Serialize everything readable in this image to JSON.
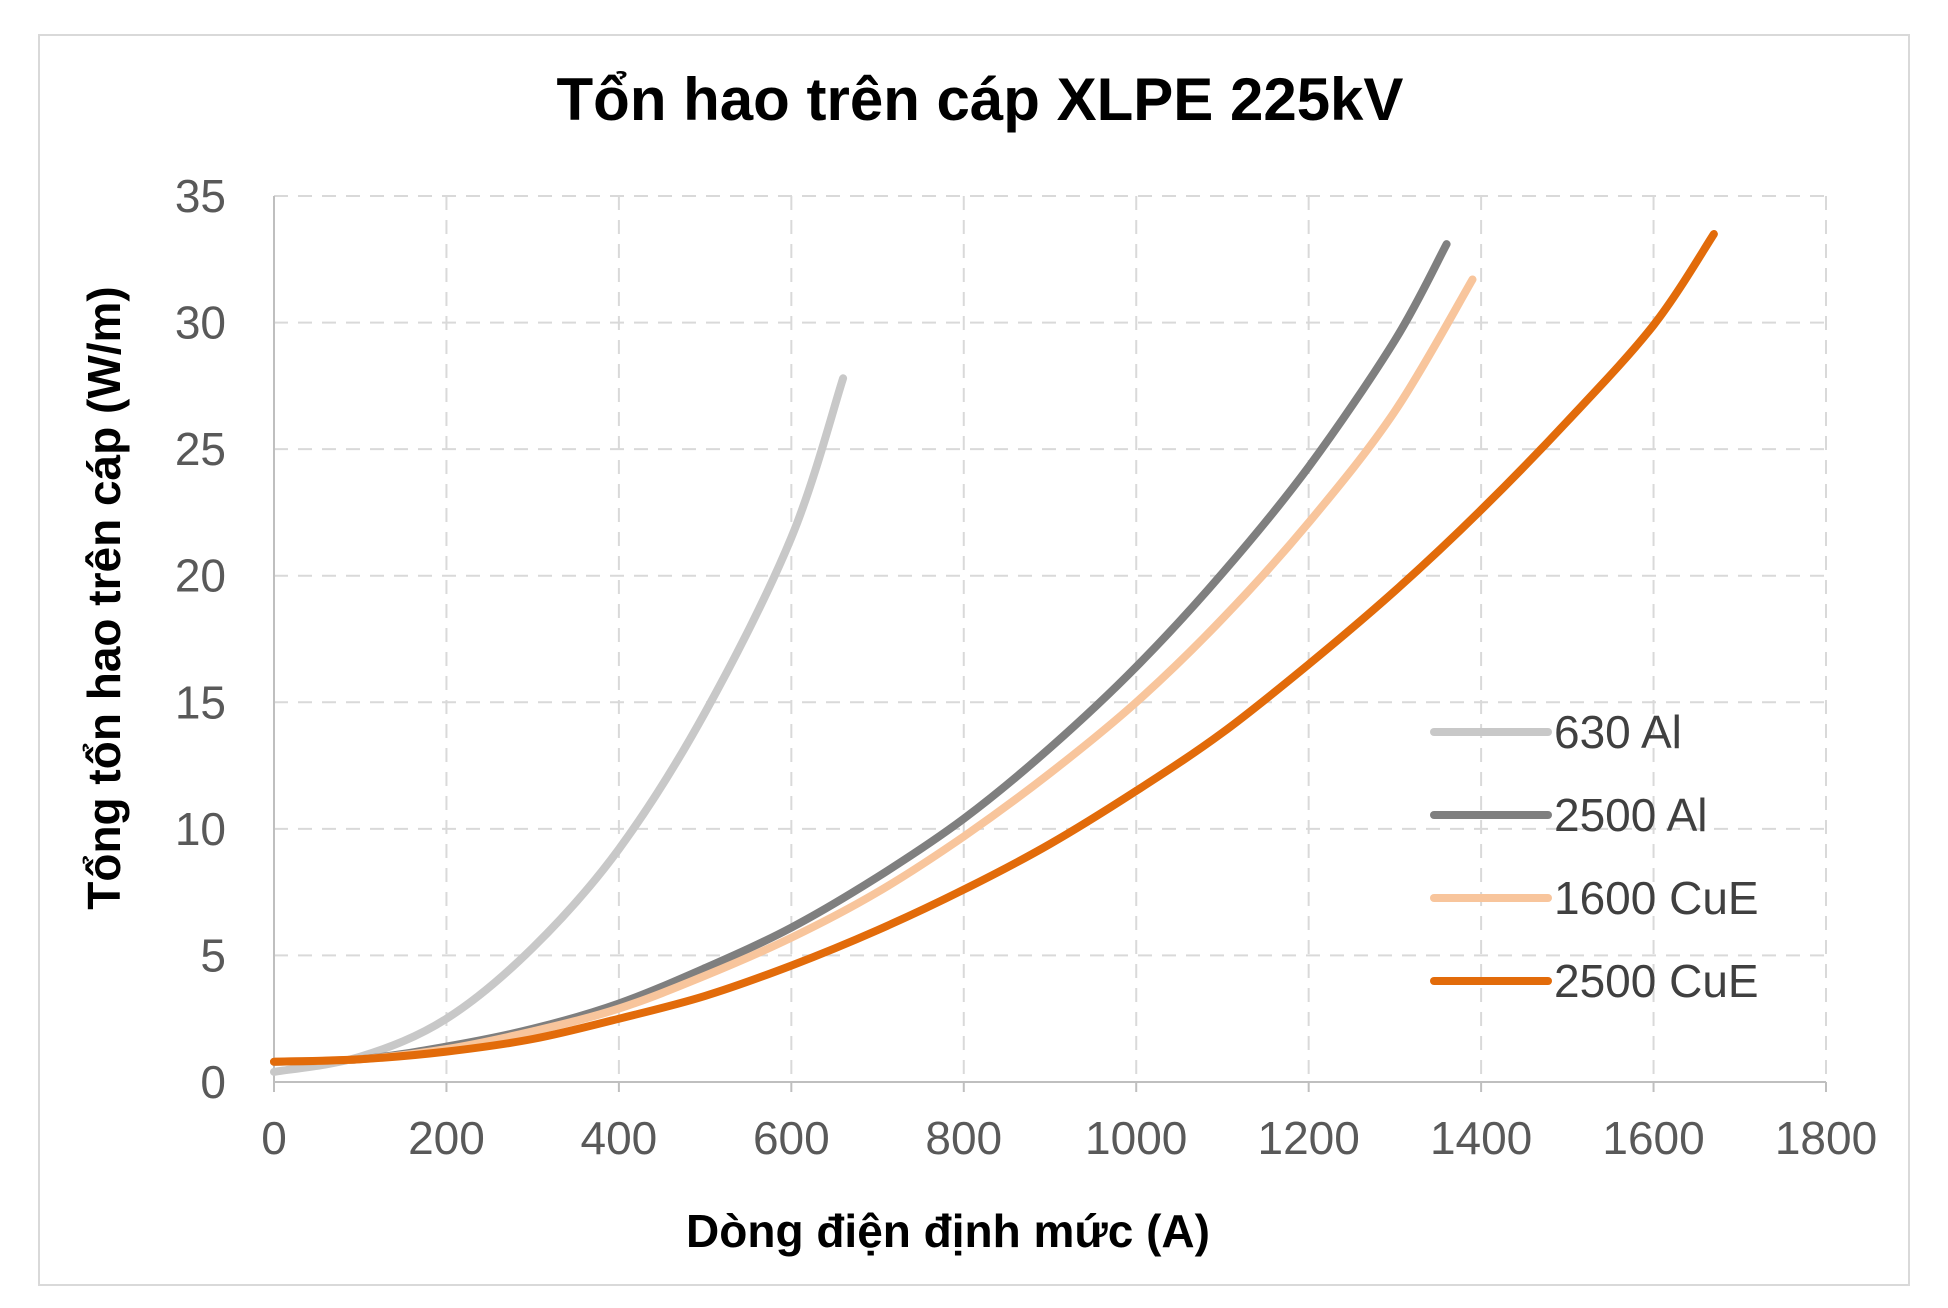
{
  "chart_data": {
    "type": "line",
    "title": "Tổn hao trên cáp XLPE 225kV",
    "xlabel": "Dòng điện định mức (A)",
    "ylabel": "Tổng tổn hao trên cáp (W/m)",
    "xlim": [
      0,
      1800
    ],
    "ylim": [
      0,
      35
    ],
    "xticks": [
      "0",
      "200",
      "400",
      "600",
      "800",
      "1000",
      "1200",
      "1400",
      "1600",
      "1800"
    ],
    "yticks": [
      "0",
      "5",
      "10",
      "15",
      "20",
      "25",
      "30",
      "35"
    ],
    "grid": true,
    "legend_position": "right-bottom",
    "series": [
      {
        "name": "630 Al",
        "color": "#c8c8c8",
        "x": [
          0,
          100,
          200,
          300,
          400,
          500,
          600,
          660
        ],
        "y": [
          0.4,
          1.0,
          2.5,
          5.3,
          9.2,
          14.6,
          21.5,
          27.8
        ]
      },
      {
        "name": "2500 Al",
        "color": "#7f7f7f",
        "x": [
          0,
          100,
          200,
          300,
          400,
          500,
          600,
          700,
          800,
          900,
          1000,
          1100,
          1200,
          1300,
          1360
        ],
        "y": [
          0.8,
          0.9,
          1.4,
          2.1,
          3.1,
          4.5,
          6.1,
          8.1,
          10.4,
          13.2,
          16.4,
          20.1,
          24.3,
          29.3,
          33.1
        ]
      },
      {
        "name": "1600 CuE",
        "color": "#f8c59c",
        "x": [
          0,
          100,
          200,
          300,
          400,
          500,
          600,
          700,
          800,
          900,
          1000,
          1100,
          1200,
          1300,
          1390
        ],
        "y": [
          0.8,
          0.9,
          1.3,
          2.0,
          2.9,
          4.2,
          5.7,
          7.5,
          9.7,
          12.2,
          15.0,
          18.3,
          22.1,
          26.5,
          31.7
        ]
      },
      {
        "name": "2500 CuE",
        "color": "#e26b0a",
        "x": [
          0,
          100,
          200,
          300,
          400,
          500,
          600,
          700,
          800,
          900,
          1000,
          1100,
          1200,
          1300,
          1400,
          1500,
          1600,
          1670
        ],
        "y": [
          0.8,
          0.9,
          1.2,
          1.7,
          2.5,
          3.4,
          4.6,
          6.0,
          7.6,
          9.4,
          11.5,
          13.8,
          16.5,
          19.4,
          22.6,
          26.1,
          29.9,
          33.5
        ]
      }
    ]
  }
}
